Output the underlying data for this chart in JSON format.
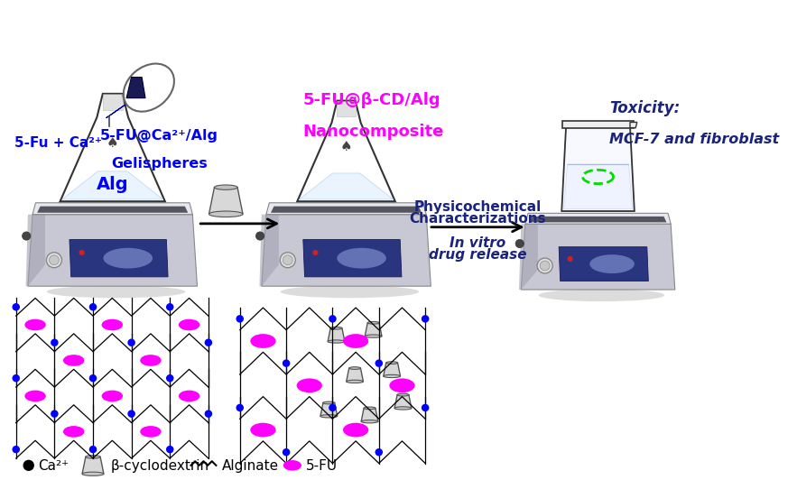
{
  "background_color": "#ffffff",
  "label_5fu_ca": "5-Fu + Ca²⁺",
  "label_gel1": "5-FU@Ca²⁺/Alg",
  "label_gel2": "Gelispheres",
  "label_alg": "Alg",
  "label_nano1": "5-FU@β-CD/Alg",
  "label_nano2": "Nanocomposite",
  "label_physico1": "Physicochemical",
  "label_physico2": "Characterizations",
  "label_invitro1": "In vitro",
  "label_invitro2": "drug release",
  "label_tox1": "Toxicity:",
  "label_tox2": "MCF-7 and fibroblast",
  "legend_ca": "Ca²⁺",
  "legend_beta": "β-cyclodextrin",
  "legend_alg": "Alginate",
  "legend_5fu": "5-FU",
  "blue": "#0000ff",
  "magenta": "#ff00ff",
  "dark_blue": "#1a237e",
  "plate_top_color": "#e0e0ea",
  "plate_body_color": "#c8c8d5",
  "plate_panel_color": "#2a3580",
  "plate_shadow": "#a0a0b0",
  "green_dashed": "#00dd00",
  "black": "#000000",
  "dark_gray": "#555555",
  "mid_gray": "#888888",
  "light_gray": "#cccccc"
}
